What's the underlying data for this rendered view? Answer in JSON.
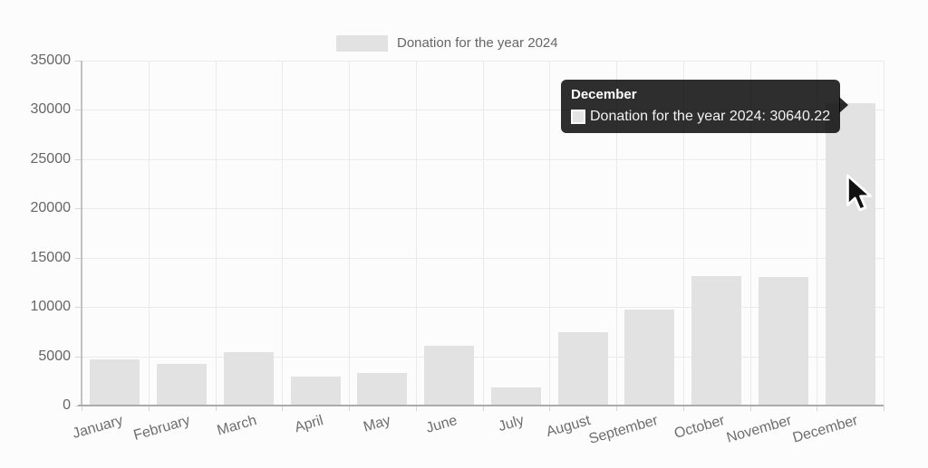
{
  "legend": {
    "label": "Donation for the year 2024"
  },
  "tooltip": {
    "title": "December",
    "label": "Donation for the year 2024: 30640.22"
  },
  "chart_data": {
    "type": "bar",
    "title": "",
    "xlabel": "",
    "ylabel": "",
    "categories": [
      "January",
      "February",
      "March",
      "April",
      "May",
      "June",
      "July",
      "August",
      "September",
      "October",
      "November",
      "December"
    ],
    "series": [
      {
        "name": "Donation for the year 2024",
        "values": [
          4700,
          4250,
          5400,
          2900,
          3350,
          6100,
          1800,
          7450,
          9700,
          13100,
          13000,
          30640.22
        ]
      }
    ],
    "ylim": [
      0,
      35000
    ],
    "yticks": [
      0,
      5000,
      10000,
      15000,
      20000,
      25000,
      30000,
      35000
    ],
    "grid": true,
    "legend_position": "top",
    "colors": {
      "bar": "#e2e2e2",
      "grid": "#eaeaea",
      "axis_text": "#666666",
      "tooltip_bg": "rgba(0,0,0,0.82)"
    }
  }
}
